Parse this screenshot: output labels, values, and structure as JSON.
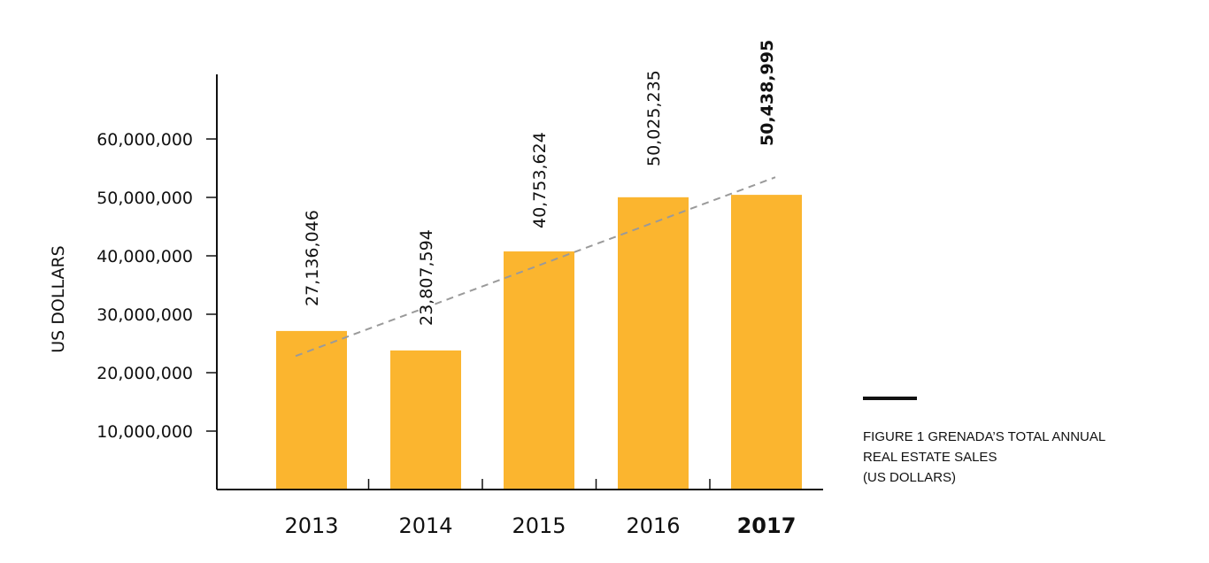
{
  "chart_data": {
    "type": "bar",
    "categories": [
      "2013",
      "2014",
      "2015",
      "2016",
      "2017"
    ],
    "values": [
      27136046,
      23807594,
      40753624,
      50025235,
      50438995
    ],
    "value_labels": [
      "27,136,046",
      "23,807,594",
      "40,753,624",
      "50,025,235",
      "50,438,995"
    ],
    "highlight_index": 4,
    "ylabel": "US DOLLARS",
    "xlabel": "",
    "y_ticks": [
      10000000,
      20000000,
      30000000,
      40000000,
      50000000,
      60000000
    ],
    "y_tick_labels": [
      "10,000,000",
      "20,000,000",
      "30,000,000",
      "40,000,000",
      "50,000,000",
      "60,000,000"
    ],
    "trendline": true,
    "grid": false,
    "colors": {
      "bar": "#FBB52F",
      "trend": "#9A9A9A",
      "axis": "#111111",
      "text": "#111111"
    }
  },
  "caption": {
    "lines": [
      "FIGURE 1  GRENADA’S TOTAL ANNUAL",
      "REAL ESTATE SALES",
      "(US DOLLARS)"
    ]
  }
}
